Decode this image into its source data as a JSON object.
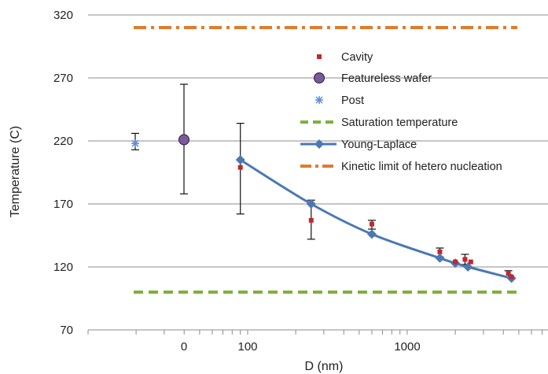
{
  "chart_data": {
    "type": "scatter",
    "title": "",
    "xlabel": "D (nm)",
    "ylabel": "Temperature (C)",
    "x_scale": "log",
    "x_tick_labels": [
      "0",
      "100",
      "1000"
    ],
    "ylim": [
      70,
      320
    ],
    "y_ticks": [
      70,
      120,
      170,
      220,
      270,
      320
    ],
    "grid": "horizontal",
    "legend_position": "top-right",
    "series": [
      {
        "name": "Cavity",
        "kind": "points",
        "color": "#c0282c",
        "points": [
          {
            "x": 90,
            "y": 199
          },
          {
            "x": 250,
            "y": 157
          },
          {
            "x": 600,
            "y": 154
          },
          {
            "x": 1600,
            "y": 132
          },
          {
            "x": 2000,
            "y": 124
          },
          {
            "x": 2300,
            "y": 126
          },
          {
            "x": 2500,
            "y": 124
          },
          {
            "x": 4300,
            "y": 115
          },
          {
            "x": 4500,
            "y": 112
          }
        ]
      },
      {
        "name": "Featureless wafer",
        "kind": "point",
        "x_label": "0",
        "y": 221,
        "error": [
          178,
          265
        ],
        "color": "#7a5a9a"
      },
      {
        "name": "Post",
        "kind": "point",
        "y": 218,
        "error": [
          213,
          226
        ],
        "color": "#5b8fd4"
      },
      {
        "name": "Saturation temperature",
        "kind": "hline",
        "y": 100,
        "color": "#7fb03a"
      },
      {
        "name": "Young-Laplace",
        "kind": "line",
        "color": "#4a78b5",
        "points": [
          {
            "x": 90,
            "y": 205
          },
          {
            "x": 250,
            "y": 170
          },
          {
            "x": 600,
            "y": 146
          },
          {
            "x": 1600,
            "y": 127
          },
          {
            "x": 2000,
            "y": 123
          },
          {
            "x": 2400,
            "y": 120
          },
          {
            "x": 4500,
            "y": 111
          }
        ]
      },
      {
        "name": "Kinetic limit of hetero nucleation",
        "kind": "hline",
        "y": 310,
        "color": "#e07b2b"
      }
    ],
    "error_bars": [
      {
        "x": 90,
        "low": 162,
        "high": 234
      },
      {
        "x": 250,
        "low": 142,
        "high": 173
      },
      {
        "x": 600,
        "low": 150,
        "high": 157
      },
      {
        "x": 1600,
        "low": 128,
        "high": 135
      },
      {
        "x": 2300,
        "low": 122,
        "high": 130
      },
      {
        "x": 4300,
        "low": 112,
        "high": 117
      }
    ]
  }
}
